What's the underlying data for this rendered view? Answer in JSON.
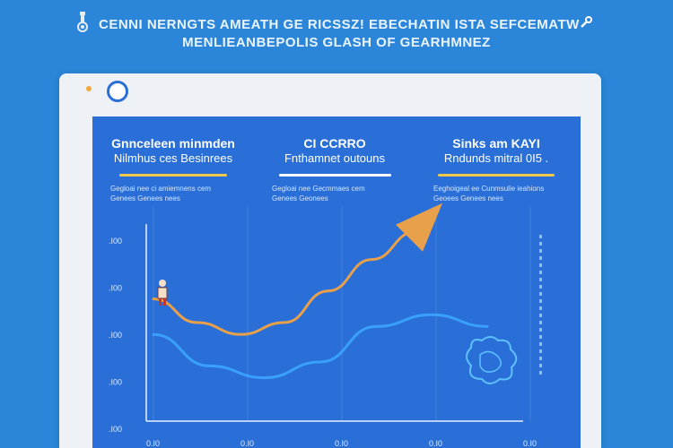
{
  "header": {
    "line1": "CENNI NERNGTS AMEATH GE RICSSZ! EBECHATIN ISTA SEFCEMATW",
    "line2": "MENLIEANBEPOLIS GLASH OF GEARHMNEZ"
  },
  "metrics": [
    {
      "title": "Gnnceleen minmden",
      "subtitle": "Nilmhus ces Besinrees",
      "detail1": "Gegloai nee    ci amiemnens cem",
      "detail2": "Genees             Genees nees"
    },
    {
      "title": "CI CCRRO",
      "subtitle": "Fnthamnet outouns",
      "detail1": "Gegloai nee    Gecmmaes cem",
      "detail2": "Genees             Geonees"
    },
    {
      "title": "Sinks am KAYI",
      "subtitle": "Rndunds mitral 0I5 .",
      "detail1": "Eeghoigeal ee    Cunmsulie ieahions",
      "detail2": "Geoees             Genees nees"
    }
  ],
  "chart_data": {
    "type": "line",
    "yticks": [
      ".I00",
      ".I00",
      ".I00",
      ".I00",
      ".I00"
    ],
    "xticks": [
      "0.I0",
      "0.I0",
      "0.I0",
      "0.I0",
      "0.I0"
    ],
    "series": [
      {
        "values": [
          0.62,
          0.5,
          0.44,
          0.5,
          0.66,
          0.82,
          0.96
        ],
        "color": "#e8a04a"
      },
      {
        "values": [
          0.44,
          0.28,
          0.22,
          0.3,
          0.48,
          0.54,
          0.48
        ],
        "color": "#3aa0ff"
      }
    ],
    "arrow_color": "#e8a04a"
  },
  "colors": {
    "background": "#2b86d9",
    "panel": "#2a6fd8",
    "accent_yellow": "#f1c84a",
    "orange_line": "#e8a04a",
    "blue_line": "#3aa0ff"
  }
}
